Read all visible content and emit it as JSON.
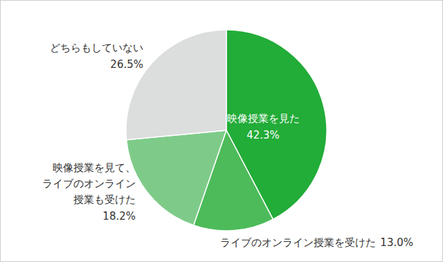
{
  "chart_data": {
    "type": "pie",
    "categories": [
      "映像授業を見た",
      "ライブのオンライン授業を受けた",
      "映像授業を見て、\nライブのオンライン\n授業も受けた",
      "どちらもしていない"
    ],
    "values": [
      42.3,
      13.0,
      18.2,
      26.5
    ],
    "value_labels": [
      "42.3%",
      "13.0%",
      "18.2%",
      "26.5%"
    ],
    "colors": [
      "#22ac38",
      "#4dbb5a",
      "#7ecb89",
      "#dcdddd"
    ],
    "data_labels": true
  }
}
